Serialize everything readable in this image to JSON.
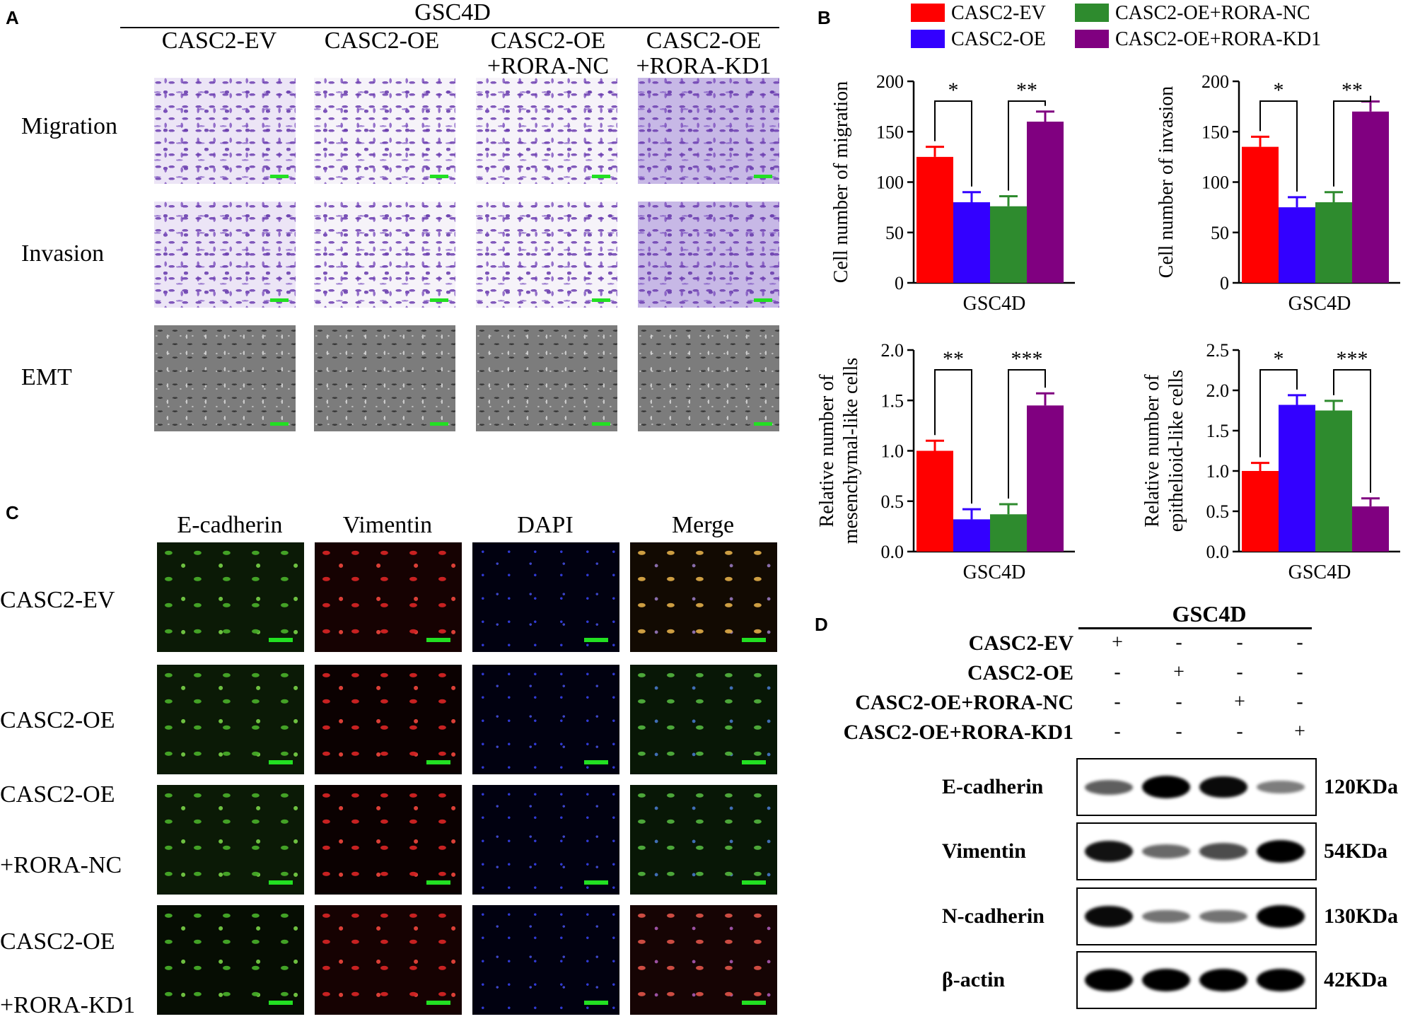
{
  "panels": {
    "a": "A",
    "b": "B",
    "c": "C",
    "d": "D"
  },
  "panel_a": {
    "title": "GSC4D",
    "columns": [
      [
        "CASC2-EV"
      ],
      [
        "CASC2-OE"
      ],
      [
        "CASC2-OE",
        "+RORA-NC"
      ],
      [
        "CASC2-OE",
        "+RORA-KD1"
      ]
    ],
    "rows": [
      "Migration",
      "Invasion",
      "EMT"
    ]
  },
  "legend": [
    {
      "label": "CASC2-EV",
      "color": "#ff0000"
    },
    {
      "label": "CASC2-OE",
      "color": "#3300ff"
    },
    {
      "label": "CASC2-OE+RORA-NC",
      "color": "#2e8b2e"
    },
    {
      "label": "CASC2-OE+RORA-KD1",
      "color": "#800080"
    }
  ],
  "chart_data": [
    {
      "type": "bar",
      "categories": [
        "GSC4D"
      ],
      "xlabel": "GSC4D",
      "ylabel": "Cell number of migration",
      "ylim": [
        0,
        200
      ],
      "yticks": [
        "0",
        "50",
        "100",
        "150",
        "200"
      ],
      "series": [
        {
          "name": "CASC2-EV",
          "values": [
            125
          ],
          "error": [
            10
          ]
        },
        {
          "name": "CASC2-OE",
          "values": [
            80
          ],
          "error": [
            10
          ]
        },
        {
          "name": "CASC2-OE+RORA-NC",
          "values": [
            76
          ],
          "error": [
            10
          ]
        },
        {
          "name": "CASC2-OE+RORA-KD1",
          "values": [
            160
          ],
          "error": [
            10
          ]
        }
      ],
      "significance": [
        {
          "pair": [
            0,
            1
          ],
          "label": "*"
        },
        {
          "pair": [
            2,
            3
          ],
          "label": "**"
        }
      ]
    },
    {
      "type": "bar",
      "categories": [
        "GSC4D"
      ],
      "xlabel": "GSC4D",
      "ylabel": "Cell number of invasion",
      "ylim": [
        0,
        200
      ],
      "yticks": [
        "0",
        "50",
        "100",
        "150",
        "200"
      ],
      "series": [
        {
          "name": "CASC2-EV",
          "values": [
            135
          ],
          "error": [
            10
          ]
        },
        {
          "name": "CASC2-OE",
          "values": [
            75
          ],
          "error": [
            10
          ]
        },
        {
          "name": "CASC2-OE+RORA-NC",
          "values": [
            80
          ],
          "error": [
            10
          ]
        },
        {
          "name": "CASC2-OE+RORA-KD1",
          "values": [
            170
          ],
          "error": [
            10
          ]
        }
      ],
      "significance": [
        {
          "pair": [
            0,
            1
          ],
          "label": "*"
        },
        {
          "pair": [
            2,
            3
          ],
          "label": "**"
        }
      ]
    },
    {
      "type": "bar",
      "categories": [
        "GSC4D"
      ],
      "xlabel": "GSC4D",
      "ylabel": [
        "Relative number of",
        "mesenchymal-like cells"
      ],
      "ylim": [
        0,
        2.0
      ],
      "yticks": [
        "0.0",
        "0.5",
        "1.0",
        "1.5",
        "2.0"
      ],
      "series": [
        {
          "name": "CASC2-EV",
          "values": [
            1.0
          ],
          "error": [
            0.1
          ]
        },
        {
          "name": "CASC2-OE",
          "values": [
            0.32
          ],
          "error": [
            0.1
          ]
        },
        {
          "name": "CASC2-OE+RORA-NC",
          "values": [
            0.37
          ],
          "error": [
            0.1
          ]
        },
        {
          "name": "CASC2-OE+RORA-KD1",
          "values": [
            1.45
          ],
          "error": [
            0.12
          ]
        }
      ],
      "significance": [
        {
          "pair": [
            0,
            1
          ],
          "label": "**"
        },
        {
          "pair": [
            2,
            3
          ],
          "label": "***"
        }
      ]
    },
    {
      "type": "bar",
      "categories": [
        "GSC4D"
      ],
      "xlabel": "GSC4D",
      "ylabel": [
        "Relative number of",
        "epithelioid-like cells"
      ],
      "ylim": [
        0,
        2.5
      ],
      "yticks": [
        "0.0",
        "0.5",
        "1.0",
        "1.5",
        "2.0",
        "2.5"
      ],
      "series": [
        {
          "name": "CASC2-EV",
          "values": [
            1.0
          ],
          "error": [
            0.1
          ]
        },
        {
          "name": "CASC2-OE",
          "values": [
            1.82
          ],
          "error": [
            0.12
          ]
        },
        {
          "name": "CASC2-OE+RORA-NC",
          "values": [
            1.75
          ],
          "error": [
            0.12
          ]
        },
        {
          "name": "CASC2-OE+RORA-KD1",
          "values": [
            0.56
          ],
          "error": [
            0.1
          ]
        }
      ],
      "significance": [
        {
          "pair": [
            0,
            1
          ],
          "label": "*"
        },
        {
          "pair": [
            2,
            3
          ],
          "label": "***"
        }
      ]
    }
  ],
  "panel_c": {
    "columns": [
      "E-cadherin",
      "Vimentin",
      "DAPI",
      "Merge"
    ],
    "rows": [
      [
        "CASC2-EV"
      ],
      [
        "CASC2-OE"
      ],
      [
        "CASC2-OE",
        "+RORA-NC"
      ],
      [
        "CASC2-OE",
        "+RORA-KD1"
      ]
    ]
  },
  "panel_d": {
    "title": "GSC4D",
    "conditions": [
      "CASC2-EV",
      "CASC2-OE",
      "CASC2-OE+RORA-NC",
      "CASC2-OE+RORA-KD1"
    ],
    "signs": [
      [
        "+",
        "-",
        "-",
        "-"
      ],
      [
        "-",
        "+",
        "-",
        "-"
      ],
      [
        "-",
        "-",
        "+",
        "-"
      ],
      [
        "-",
        "-",
        "-",
        "+"
      ]
    ],
    "blots": [
      {
        "protein": "E-cadherin",
        "size": "120KDa",
        "intensity": [
          0.5,
          1.0,
          0.95,
          0.35
        ]
      },
      {
        "protein": "Vimentin",
        "size": "54KDa",
        "intensity": [
          0.9,
          0.45,
          0.6,
          1.0
        ]
      },
      {
        "protein": "N-cadherin",
        "size": "130KDa",
        "intensity": [
          0.95,
          0.4,
          0.4,
          1.0
        ]
      },
      {
        "protein": "β-actin",
        "size": "42KDa",
        "intensity": [
          1.0,
          1.0,
          1.0,
          1.0
        ]
      }
    ]
  }
}
